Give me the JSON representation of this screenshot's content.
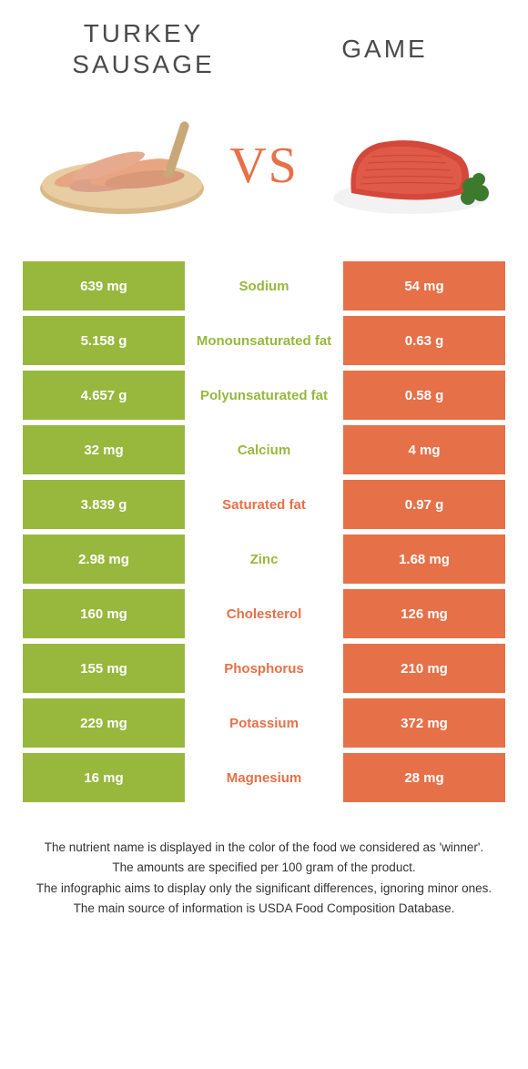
{
  "colors": {
    "green": "#97b83d",
    "orange": "#e67048",
    "white": "#ffffff",
    "text_dark": "#333333"
  },
  "left_title": "TURKEY SAUSAGE",
  "right_title": "GAME",
  "vs_label": "VS",
  "rows": [
    {
      "left": "639 mg",
      "mid": "Sodium",
      "right": "54 mg",
      "winner": "left"
    },
    {
      "left": "5.158 g",
      "mid": "Monounsaturated fat",
      "right": "0.63 g",
      "winner": "left"
    },
    {
      "left": "4.657 g",
      "mid": "Polyunsaturated fat",
      "right": "0.58 g",
      "winner": "left"
    },
    {
      "left": "32 mg",
      "mid": "Calcium",
      "right": "4 mg",
      "winner": "left"
    },
    {
      "left": "3.839 g",
      "mid": "Saturated fat",
      "right": "0.97 g",
      "winner": "right"
    },
    {
      "left": "2.98 mg",
      "mid": "Zinc",
      "right": "1.68 mg",
      "winner": "left"
    },
    {
      "left": "160 mg",
      "mid": "Cholesterol",
      "right": "126 mg",
      "winner": "right"
    },
    {
      "left": "155 mg",
      "mid": "Phosphorus",
      "right": "210 mg",
      "winner": "right"
    },
    {
      "left": "229 mg",
      "mid": "Potassium",
      "right": "372 mg",
      "winner": "right"
    },
    {
      "left": "16 mg",
      "mid": "Magnesium",
      "right": "28 mg",
      "winner": "right"
    }
  ],
  "footnotes": [
    "The nutrient name is displayed in the color of the food we considered as 'winner'.",
    "The amounts are specified per 100 gram of the product.",
    "The infographic aims to display only the significant differences, ignoring minor ones.",
    "The main source of information is USDA Food Composition Database."
  ]
}
